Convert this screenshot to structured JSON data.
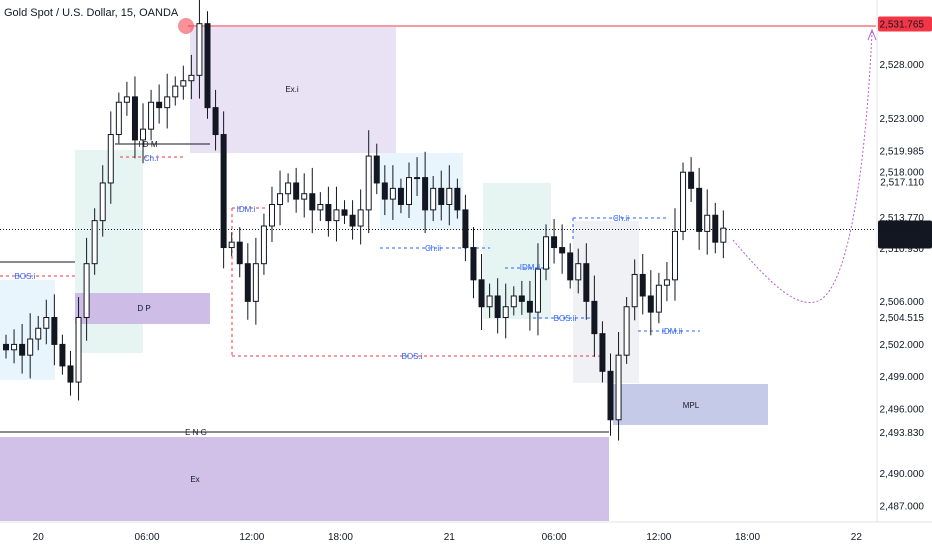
{
  "header": {
    "title": "Gold Spot / U.S. Dollar, 15, OANDA"
  },
  "colors": {
    "candle": "#131722",
    "red_line": "#f23645",
    "blue_dash": "#2962ff",
    "zone_light_blue": "#e3f2fd",
    "zone_light_green": "#e0f2ef",
    "zone_lavender": "#e9e2f4",
    "zone_purple": "#c9b6e4",
    "zone_mpl": "#c5cae9",
    "zone_grey": "#eef0f3",
    "projection": "#b061c9"
  },
  "chart_data": {
    "type": "candlestick",
    "title": "Gold Spot / U.S. Dollar, 15, OANDA",
    "x_ticks": [
      "20",
      "06:00",
      "12:00",
      "18:00",
      "21",
      "06:00",
      "12:00",
      "18:00",
      "22"
    ],
    "y_ticks": [
      "2,528.000",
      "2,523.000",
      "2,518.000",
      "2,506.000",
      "2,502.000",
      "2,499.000",
      "2,496.000",
      "2,490.000",
      "2,487.000"
    ],
    "y_range": [
      2485.5,
      2534
    ],
    "price_labels": [
      {
        "text": "2,531.765",
        "value": 2531.765,
        "style": "red"
      },
      {
        "text": "2,519.985",
        "value": 2519.985,
        "style": "plain"
      },
      {
        "text": "2,517.110",
        "value": 2517.11,
        "style": "plain"
      },
      {
        "text": "2,513.770",
        "value": 2513.77,
        "style": "plain"
      },
      {
        "text": "2,512.820",
        "value": 2512.82,
        "style": "current"
      },
      {
        "text": "2,510.930",
        "value": 2510.93,
        "style": "plain"
      },
      {
        "text": "2,504.515",
        "value": 2504.515,
        "style": "plain"
      },
      {
        "text": "2,493.830",
        "value": 2493.83,
        "style": "plain"
      }
    ],
    "countdown": "02:07",
    "current_price": 2512.82,
    "close_path": [
      [
        -0.5,
        2502
      ],
      [
        0.5,
        2501.5
      ],
      [
        1.5,
        2502
      ],
      [
        2.5,
        2501
      ],
      [
        3.5,
        2502.5
      ],
      [
        4.5,
        2503.5
      ],
      [
        5.5,
        2504.5
      ],
      [
        6.5,
        2502
      ],
      [
        7.5,
        2500
      ],
      [
        8.5,
        2498.5
      ],
      [
        9.5,
        2504.5
      ],
      [
        10.5,
        2509.5
      ],
      [
        11.5,
        2513.5
      ],
      [
        12.5,
        2517
      ],
      [
        13.5,
        2521.5
      ],
      [
        14.5,
        2524.5
      ],
      [
        15.5,
        2525
      ],
      [
        16.5,
        2521
      ],
      [
        17.5,
        2522
      ],
      [
        18.5,
        2524.5
      ],
      [
        19.5,
        2524
      ],
      [
        20.5,
        2525
      ],
      [
        21.5,
        2526
      ],
      [
        22.5,
        2526.5
      ],
      [
        23.5,
        2527
      ],
      [
        24.5,
        2531.8
      ],
      [
        25.5,
        2524
      ],
      [
        26.5,
        2521.5
      ],
      [
        27.5,
        2511
      ],
      [
        28.5,
        2511.5
      ],
      [
        29.5,
        2509.5
      ],
      [
        30.5,
        2506
      ],
      [
        31.5,
        2509.5
      ],
      [
        32.5,
        2513
      ],
      [
        33.5,
        2515
      ],
      [
        34.5,
        2516
      ],
      [
        35.5,
        2517
      ],
      [
        36.5,
        2515.5
      ],
      [
        37.5,
        2516
      ],
      [
        38.5,
        2514.5
      ],
      [
        39.5,
        2515
      ],
      [
        40.5,
        2513.5
      ],
      [
        41.5,
        2514.5
      ],
      [
        42.5,
        2514
      ],
      [
        43.5,
        2513
      ],
      [
        44.5,
        2514.5
      ],
      [
        45.5,
        2519.5
      ],
      [
        46.5,
        2517
      ],
      [
        47.5,
        2515.5
      ],
      [
        48.5,
        2516.5
      ],
      [
        49.5,
        2515
      ],
      [
        50.5,
        2517.5
      ],
      [
        51.5,
        2517.5
      ],
      [
        52.5,
        2514.5
      ],
      [
        53.5,
        2516.5
      ],
      [
        54.5,
        2515
      ],
      [
        55.5,
        2516.5
      ],
      [
        56.5,
        2514.5
      ],
      [
        57.5,
        2511
      ],
      [
        58.5,
        2508
      ],
      [
        59.5,
        2505.5
      ],
      [
        60.5,
        2506.5
      ],
      [
        61.5,
        2504.5
      ],
      [
        62.5,
        2505.5
      ],
      [
        63.5,
        2506.5
      ],
      [
        64.5,
        2506
      ],
      [
        65.5,
        2505
      ],
      [
        66.5,
        2509
      ],
      [
        67.5,
        2512
      ],
      [
        68.5,
        2511
      ],
      [
        69.5,
        2510.5
      ],
      [
        70.5,
        2508
      ],
      [
        71.5,
        2509.5
      ],
      [
        72.5,
        2506
      ],
      [
        73.5,
        2503
      ],
      [
        74.5,
        2499.5
      ],
      [
        75.5,
        2495
      ],
      [
        76.5,
        2501
      ],
      [
        77.5,
        2505.5
      ],
      [
        78.5,
        2508.5
      ],
      [
        79.5,
        2506.5
      ],
      [
        80.5,
        2505
      ],
      [
        81.5,
        2507.5
      ],
      [
        82.5,
        2508
      ],
      [
        83.5,
        2512.5
      ],
      [
        84.5,
        2518
      ],
      [
        85.5,
        2516.5
      ],
      [
        86.5,
        2512.5
      ],
      [
        87.5,
        2514
      ],
      [
        88.5,
        2511.5
      ],
      [
        89.5,
        2512.8
      ]
    ]
  },
  "annotations": {
    "ex_i": "Ex.i",
    "idm": "I D M",
    "ch_i": "Ch.i",
    "idm_i": "IDM.i",
    "bos_i_left": "BOS.i",
    "dp": "D P",
    "ch_ii_mid": "Ch.ii",
    "idm_ii_mid": "IDM.ii",
    "bos_ii": "BOS.ii",
    "ch_ii_right": "Ch.ii",
    "idm_ii_right": "IDM.ii",
    "bos_i_low": "BOS.i",
    "eng": "E N G",
    "mpl": "MPL",
    "ex": "Ex"
  }
}
